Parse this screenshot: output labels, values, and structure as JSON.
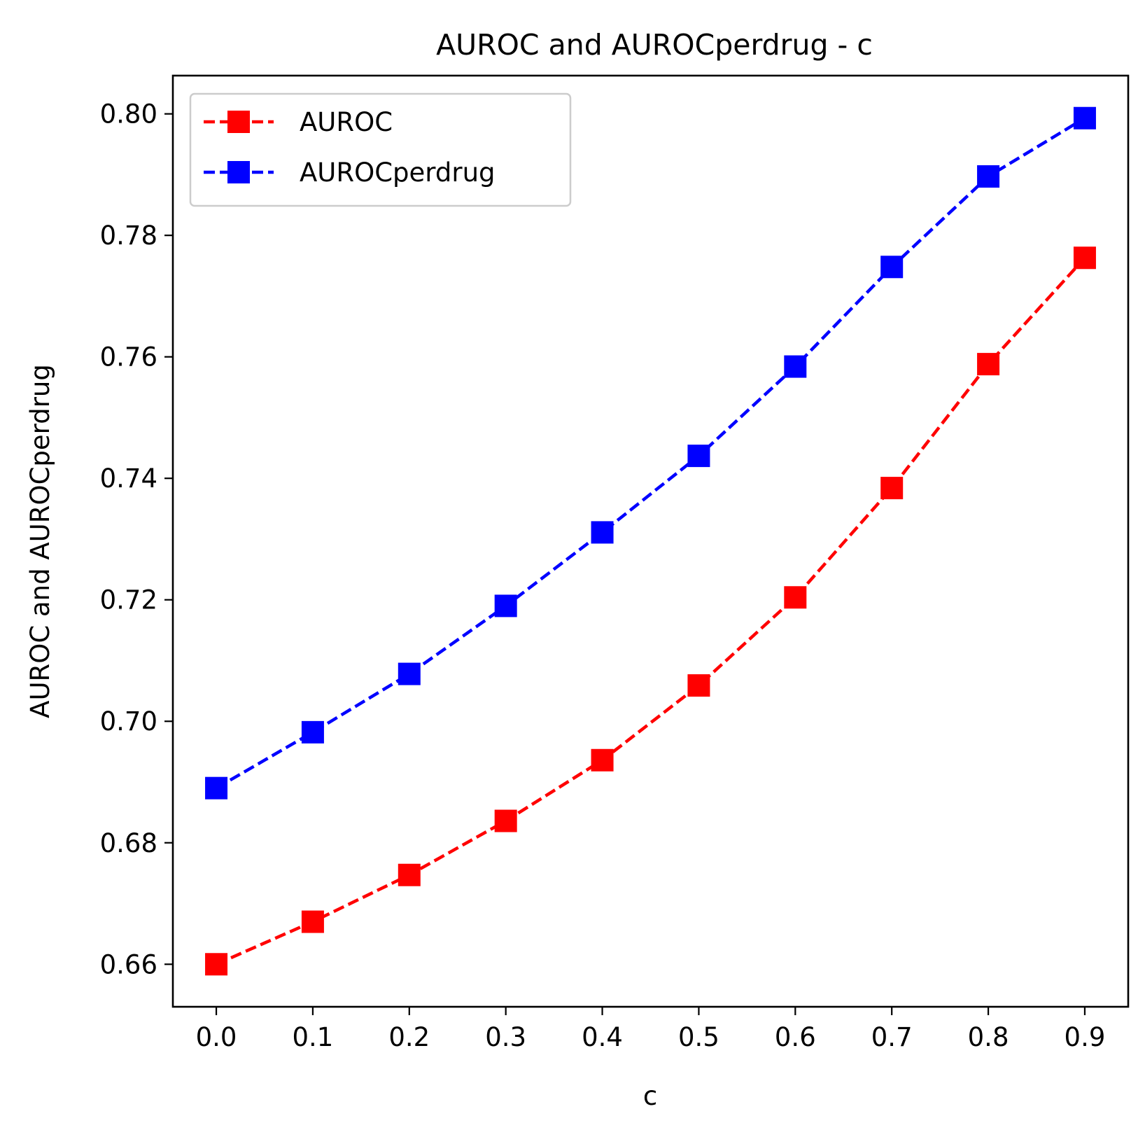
{
  "chart_data": {
    "type": "line",
    "title": "AUROC and AUROCperdrug - c",
    "xlabel": "c",
    "ylabel": "AUROC and AUROCperdrug",
    "x": [
      0.0,
      0.1,
      0.2,
      0.3,
      0.4,
      0.5,
      0.6,
      0.7,
      0.8,
      0.9
    ],
    "xticks": [
      "0.0",
      "0.1",
      "0.2",
      "0.3",
      "0.4",
      "0.5",
      "0.6",
      "0.7",
      "0.8",
      "0.9"
    ],
    "yticks": [
      "0.66",
      "0.68",
      "0.70",
      "0.72",
      "0.74",
      "0.76",
      "0.78",
      "0.80"
    ],
    "xlim": [
      -0.045,
      0.945
    ],
    "ylim": [
      0.653,
      0.8063
    ],
    "grid": false,
    "legend_position": "top-left",
    "series": [
      {
        "name": "AUROC",
        "color": "#ff0000",
        "line_style": "dashed",
        "marker": "square",
        "values": [
          0.66,
          0.667,
          0.6747,
          0.6836,
          0.6936,
          0.7059,
          0.7204,
          0.7384,
          0.7588,
          0.7763
        ]
      },
      {
        "name": "AUROCperdrug",
        "color": "#0000ff",
        "line_style": "dashed",
        "marker": "square",
        "values": [
          0.689,
          0.6982,
          0.7078,
          0.719,
          0.7311,
          0.7437,
          0.7584,
          0.7748,
          0.7897,
          0.7993
        ]
      }
    ]
  }
}
